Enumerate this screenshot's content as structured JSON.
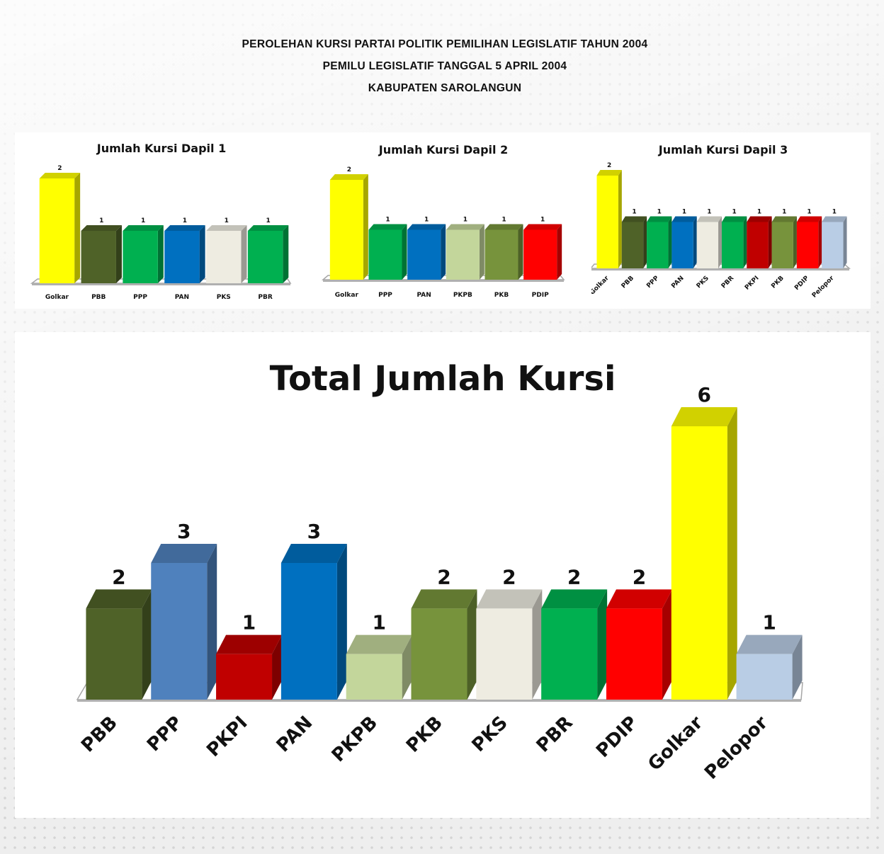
{
  "header": {
    "line1": "PEROLEHAN KURSI PARTAI POLITIK PEMILIHAN LEGISLATIF TAHUN 2004",
    "line2": "PEMILU LEGISLATIF TANGGAL 5 APRIL 2004",
    "line3": "KABUPATEN SAROLANGUN"
  },
  "chart_data": [
    {
      "type": "bar",
      "title": "Jumlah Kursi Dapil 1",
      "categories": [
        "Golkar",
        "PBB",
        "PPP",
        "PAN",
        "PKS",
        "PBR"
      ],
      "values": [
        2,
        1,
        1,
        1,
        1,
        1
      ],
      "colors": [
        "#ffff00",
        "#4f6228",
        "#00b050",
        "#0070c0",
        "#eeece1",
        "#00b050"
      ],
      "ylim": [
        0,
        2
      ]
    },
    {
      "type": "bar",
      "title": "Jumlah Kursi Dapil 2",
      "categories": [
        "Golkar",
        "PPP",
        "PAN",
        "PKPB",
        "PKB",
        "PDIP"
      ],
      "values": [
        2,
        1,
        1,
        1,
        1,
        1
      ],
      "colors": [
        "#ffff00",
        "#00b050",
        "#0070c0",
        "#c3d69b",
        "#77933c",
        "#ff0000"
      ],
      "ylim": [
        0,
        2
      ]
    },
    {
      "type": "bar",
      "title": "Jumlah Kursi Dapil 3",
      "categories": [
        "Golkar",
        "PBB",
        "PPP",
        "PAN",
        "PKS",
        "PBR",
        "PKPI",
        "PKB",
        "PDIP",
        "Pelopor"
      ],
      "values": [
        2,
        1,
        1,
        1,
        1,
        1,
        1,
        1,
        1,
        1
      ],
      "colors": [
        "#ffff00",
        "#4f6228",
        "#00b050",
        "#0070c0",
        "#eeece1",
        "#00b050",
        "#c00000",
        "#77933c",
        "#ff0000",
        "#b9cde5"
      ],
      "ylim": [
        0,
        2
      ]
    },
    {
      "type": "bar",
      "title": "Total Jumlah Kursi",
      "categories": [
        "PBB",
        "PPP",
        "PKPI",
        "PAN",
        "PKPB",
        "PKB",
        "PKS",
        "PBR",
        "PDIP",
        "Golkar",
        "Pelopor"
      ],
      "values": [
        2,
        3,
        1,
        3,
        1,
        2,
        2,
        2,
        2,
        6,
        1
      ],
      "colors": [
        "#4f6228",
        "#4f81bd",
        "#c00000",
        "#0070c0",
        "#c3d69b",
        "#77933c",
        "#eeece1",
        "#00b050",
        "#ff0000",
        "#ffff00",
        "#b9cde5"
      ],
      "ylim": [
        0,
        6
      ]
    }
  ]
}
